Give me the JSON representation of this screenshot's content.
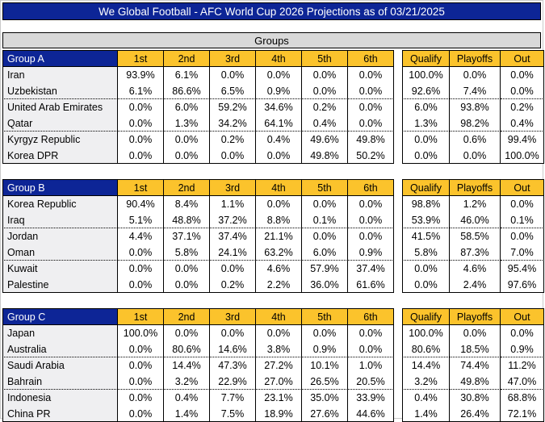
{
  "title": "We Global Football - AFC World Cup 2026 Projections as of 03/21/2025",
  "groups_label": "Groups",
  "position_headers": [
    "1st",
    "2nd",
    "3rd",
    "4th",
    "5th",
    "6th"
  ],
  "outcome_headers": [
    "Qualify",
    "Playoffs",
    "Out"
  ],
  "colors": {
    "navy": "#0d2596",
    "gold": "#fbc32c",
    "banner_gray": "#d9d9d9",
    "team_bg": "#efeff1"
  },
  "groups": [
    {
      "name": "Group A",
      "teams": [
        {
          "name": "Iran",
          "positions": [
            "93.9%",
            "6.1%",
            "0.0%",
            "0.0%",
            "0.0%",
            "0.0%"
          ],
          "outcomes": [
            "100.0%",
            "0.0%",
            "0.0%"
          ]
        },
        {
          "name": "Uzbekistan",
          "positions": [
            "6.1%",
            "86.6%",
            "6.5%",
            "0.9%",
            "0.0%",
            "0.0%"
          ],
          "outcomes": [
            "92.6%",
            "7.4%",
            "0.0%"
          ]
        },
        {
          "name": "United Arab Emirates",
          "positions": [
            "0.0%",
            "6.0%",
            "59.2%",
            "34.6%",
            "0.2%",
            "0.0%"
          ],
          "outcomes": [
            "6.0%",
            "93.8%",
            "0.2%"
          ]
        },
        {
          "name": "Qatar",
          "positions": [
            "0.0%",
            "1.3%",
            "34.2%",
            "64.1%",
            "0.4%",
            "0.0%"
          ],
          "outcomes": [
            "1.3%",
            "98.2%",
            "0.4%"
          ]
        },
        {
          "name": "Kyrgyz Republic",
          "positions": [
            "0.0%",
            "0.0%",
            "0.2%",
            "0.4%",
            "49.6%",
            "49.8%"
          ],
          "outcomes": [
            "0.0%",
            "0.6%",
            "99.4%"
          ]
        },
        {
          "name": "Korea DPR",
          "positions": [
            "0.0%",
            "0.0%",
            "0.0%",
            "0.0%",
            "49.8%",
            "50.2%"
          ],
          "outcomes": [
            "0.0%",
            "0.0%",
            "100.0%"
          ]
        }
      ]
    },
    {
      "name": "Group B",
      "teams": [
        {
          "name": "Korea Republic",
          "positions": [
            "90.4%",
            "8.4%",
            "1.1%",
            "0.0%",
            "0.0%",
            "0.0%"
          ],
          "outcomes": [
            "98.8%",
            "1.2%",
            "0.0%"
          ]
        },
        {
          "name": "Iraq",
          "positions": [
            "5.1%",
            "48.8%",
            "37.2%",
            "8.8%",
            "0.1%",
            "0.0%"
          ],
          "outcomes": [
            "53.9%",
            "46.0%",
            "0.1%"
          ]
        },
        {
          "name": "Jordan",
          "positions": [
            "4.4%",
            "37.1%",
            "37.4%",
            "21.1%",
            "0.0%",
            "0.0%"
          ],
          "outcomes": [
            "41.5%",
            "58.5%",
            "0.0%"
          ]
        },
        {
          "name": "Oman",
          "positions": [
            "0.0%",
            "5.8%",
            "24.1%",
            "63.2%",
            "6.0%",
            "0.9%"
          ],
          "outcomes": [
            "5.8%",
            "87.3%",
            "7.0%"
          ]
        },
        {
          "name": "Kuwait",
          "positions": [
            "0.0%",
            "0.0%",
            "0.0%",
            "4.6%",
            "57.9%",
            "37.4%"
          ],
          "outcomes": [
            "0.0%",
            "4.6%",
            "95.4%"
          ]
        },
        {
          "name": "Palestine",
          "positions": [
            "0.0%",
            "0.0%",
            "0.2%",
            "2.2%",
            "36.0%",
            "61.6%"
          ],
          "outcomes": [
            "0.0%",
            "2.4%",
            "97.6%"
          ]
        }
      ]
    },
    {
      "name": "Group C",
      "teams": [
        {
          "name": "Japan",
          "positions": [
            "100.0%",
            "0.0%",
            "0.0%",
            "0.0%",
            "0.0%",
            "0.0%"
          ],
          "outcomes": [
            "100.0%",
            "0.0%",
            "0.0%"
          ]
        },
        {
          "name": "Australia",
          "positions": [
            "0.0%",
            "80.6%",
            "14.6%",
            "3.8%",
            "0.9%",
            "0.0%"
          ],
          "outcomes": [
            "80.6%",
            "18.5%",
            "0.9%"
          ]
        },
        {
          "name": "Saudi Arabia",
          "positions": [
            "0.0%",
            "14.4%",
            "47.3%",
            "27.2%",
            "10.1%",
            "1.0%"
          ],
          "outcomes": [
            "14.4%",
            "74.4%",
            "11.2%"
          ]
        },
        {
          "name": "Bahrain",
          "positions": [
            "0.0%",
            "3.2%",
            "22.9%",
            "27.0%",
            "26.5%",
            "20.5%"
          ],
          "outcomes": [
            "3.2%",
            "49.8%",
            "47.0%"
          ]
        },
        {
          "name": "Indonesia",
          "positions": [
            "0.0%",
            "0.4%",
            "7.7%",
            "23.1%",
            "35.0%",
            "33.9%"
          ],
          "outcomes": [
            "0.4%",
            "30.8%",
            "68.8%"
          ]
        },
        {
          "name": "China PR",
          "positions": [
            "0.0%",
            "1.4%",
            "7.5%",
            "18.9%",
            "27.6%",
            "44.6%"
          ],
          "outcomes": [
            "1.4%",
            "26.4%",
            "72.1%"
          ]
        }
      ]
    }
  ]
}
